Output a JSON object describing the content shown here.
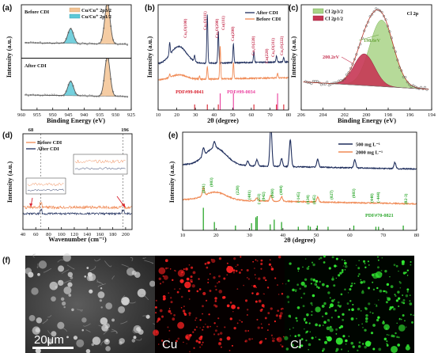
{
  "colors": {
    "before": "#f08a55",
    "after": "#1e2d5c",
    "fill_orange": "#f3c393",
    "fill_cyan": "#5cc8d7",
    "peak_green": "#a9d487",
    "peak_red": "#c63654",
    "ref_green": "#2ea82e",
    "ref_magenta": "#ea3d9d",
    "ref_red": "#d8202e",
    "cu_map": "#ff2222",
    "cl_map": "#33ee33"
  },
  "panels": {
    "a": "(a)",
    "b": "(b)",
    "c": "(c)",
    "d": "(d)",
    "e": "(e)",
    "f": "(f)"
  },
  "chart_data": [
    {
      "id": "a",
      "type": "line",
      "xlabel": "Binding Energy (eV)",
      "ylabel": "Intensity (a.u.)",
      "xlim": [
        960,
        925
      ],
      "xticks": [
        960,
        955,
        950,
        945,
        940,
        935,
        930,
        925
      ],
      "subplots": [
        {
          "label": "Before CDI",
          "satellite": 944.3,
          "main": 932.6
        },
        {
          "label": "After CDI",
          "satellite": 944.3,
          "main": 932.6
        }
      ],
      "series": [
        {
          "name": "Cu/Cu⁺ 2p3/2",
          "color": "#f3c393",
          "peak": 932.6
        },
        {
          "name": "Cu/Cu⁺ 2p1/2",
          "color": "#5cc8d7",
          "peak": 944.3
        }
      ]
    },
    {
      "id": "b",
      "type": "line",
      "xlabel": "2θ (degree)",
      "ylabel": "Intensity (a.u.)",
      "xlim": [
        10,
        80
      ],
      "xticks": [
        10,
        20,
        30,
        40,
        50,
        60,
        70,
        80
      ],
      "series": [
        {
          "name": "After CDI",
          "color": "#1e2d5c",
          "peaks": [
            16.2,
            29.6,
            36.4,
            42.3,
            50.4,
            61.4,
            73.5,
            77.4
          ]
        },
        {
          "name": "Before CDI",
          "color": "#f08a55",
          "peaks": [
            16.2,
            32.2,
            36.4,
            43.3,
            50.4,
            74.1
          ]
        }
      ],
      "annotations": [
        "Cu₂O(100)",
        "Cu₂O(111)",
        "Cu₂O(200)",
        "Cu(111)",
        "Cu(200)",
        "Cu₂O(220)",
        "Cu₂O(311)",
        "Cu₂O(222)",
        "Cu(220)"
      ],
      "references": [
        {
          "name": "PDF#99-0041",
          "color": "#d8202e",
          "x": [
            29.6,
            36.4,
            42.3,
            61.4,
            73.5,
            77.4
          ]
        },
        {
          "name": "PDF#99-0034",
          "color": "#ea3d9d",
          "x": [
            43.3,
            50.4,
            74.1
          ]
        }
      ]
    },
    {
      "id": "c",
      "type": "line",
      "title": "Cl 2p",
      "xlabel": "Binding Energy (eV)",
      "ylabel": "Intensity (a.u.)",
      "xlim": [
        206,
        194
      ],
      "xticks": [
        206,
        204,
        202,
        200,
        198,
        196,
        194
      ],
      "series": [
        {
          "name": "Cl 2p3/2",
          "color": "#a9d487",
          "peak": 198.6
        },
        {
          "name": "Cl 2p1/2",
          "color": "#c63654",
          "peak": 200.2
        }
      ],
      "annotations": [
        "198.6eV",
        "200.2eV"
      ]
    },
    {
      "id": "d",
      "type": "line",
      "xlabel": "Wavenumber (cm⁻¹)",
      "ylabel": "Intensity (a.u.)",
      "xlim": [
        40,
        210
      ],
      "xticks": [
        40,
        60,
        80,
        100,
        120,
        140,
        160,
        180,
        200
      ],
      "markers": [
        68,
        196
      ],
      "series": [
        {
          "name": "Before CDI",
          "color": "#f08a55"
        },
        {
          "name": "After CDI",
          "color": "#1e2d5c"
        }
      ]
    },
    {
      "id": "e",
      "type": "line",
      "xlabel": "2θ (degree)",
      "ylabel": "Intensity (a.u.)",
      "xlim": [
        10,
        80
      ],
      "xticks": [
        10,
        20,
        30,
        40,
        50,
        60,
        70,
        80
      ],
      "series": [
        {
          "name": "500 mg L⁻¹",
          "color": "#1e2d5c",
          "peaks": [
            16.2,
            19.5,
            29.5,
            32.2,
            36.4,
            39.6,
            42.2,
            50.4,
            61.5,
            73.5
          ]
        },
        {
          "name": "2000 mg L⁻¹",
          "color": "#f08a55",
          "peaks": [
            16.2,
            32.2,
            36.4,
            39.6,
            50.4
          ]
        }
      ],
      "reference": {
        "name": "PDF#70-0821",
        "color": "#2ea82e",
        "x": [
          16.2,
          19.5,
          25.8,
          30.6,
          31.9,
          32.3,
          36.2,
          37.4,
          39.6,
          44.6,
          47.6,
          48.2,
          50.3,
          53.5,
          61.2,
          67.8,
          68.6,
          76.0
        ],
        "h": [
          0.95,
          0.35,
          0.2,
          0.3,
          0.55,
          0.6,
          0.25,
          0.45,
          0.35,
          0.15,
          0.2,
          0.15,
          0.2,
          0.15,
          0.2,
          0.15,
          0.15,
          0.2
        ]
      },
      "annotations": [
        "(021)",
        "(003)",
        "(220)",
        "(401)",
        "(-221)",
        "(042)",
        "(060)",
        "(404)",
        "(-145)",
        "(434)",
        "(045)",
        "(027)",
        "(603)",
        "(440)",
        "(-444)",
        "(82-3)"
      ]
    }
  ],
  "images": {
    "scale_bar": "20μm",
    "cu_label": "Cu",
    "cl_label": "Cl"
  }
}
